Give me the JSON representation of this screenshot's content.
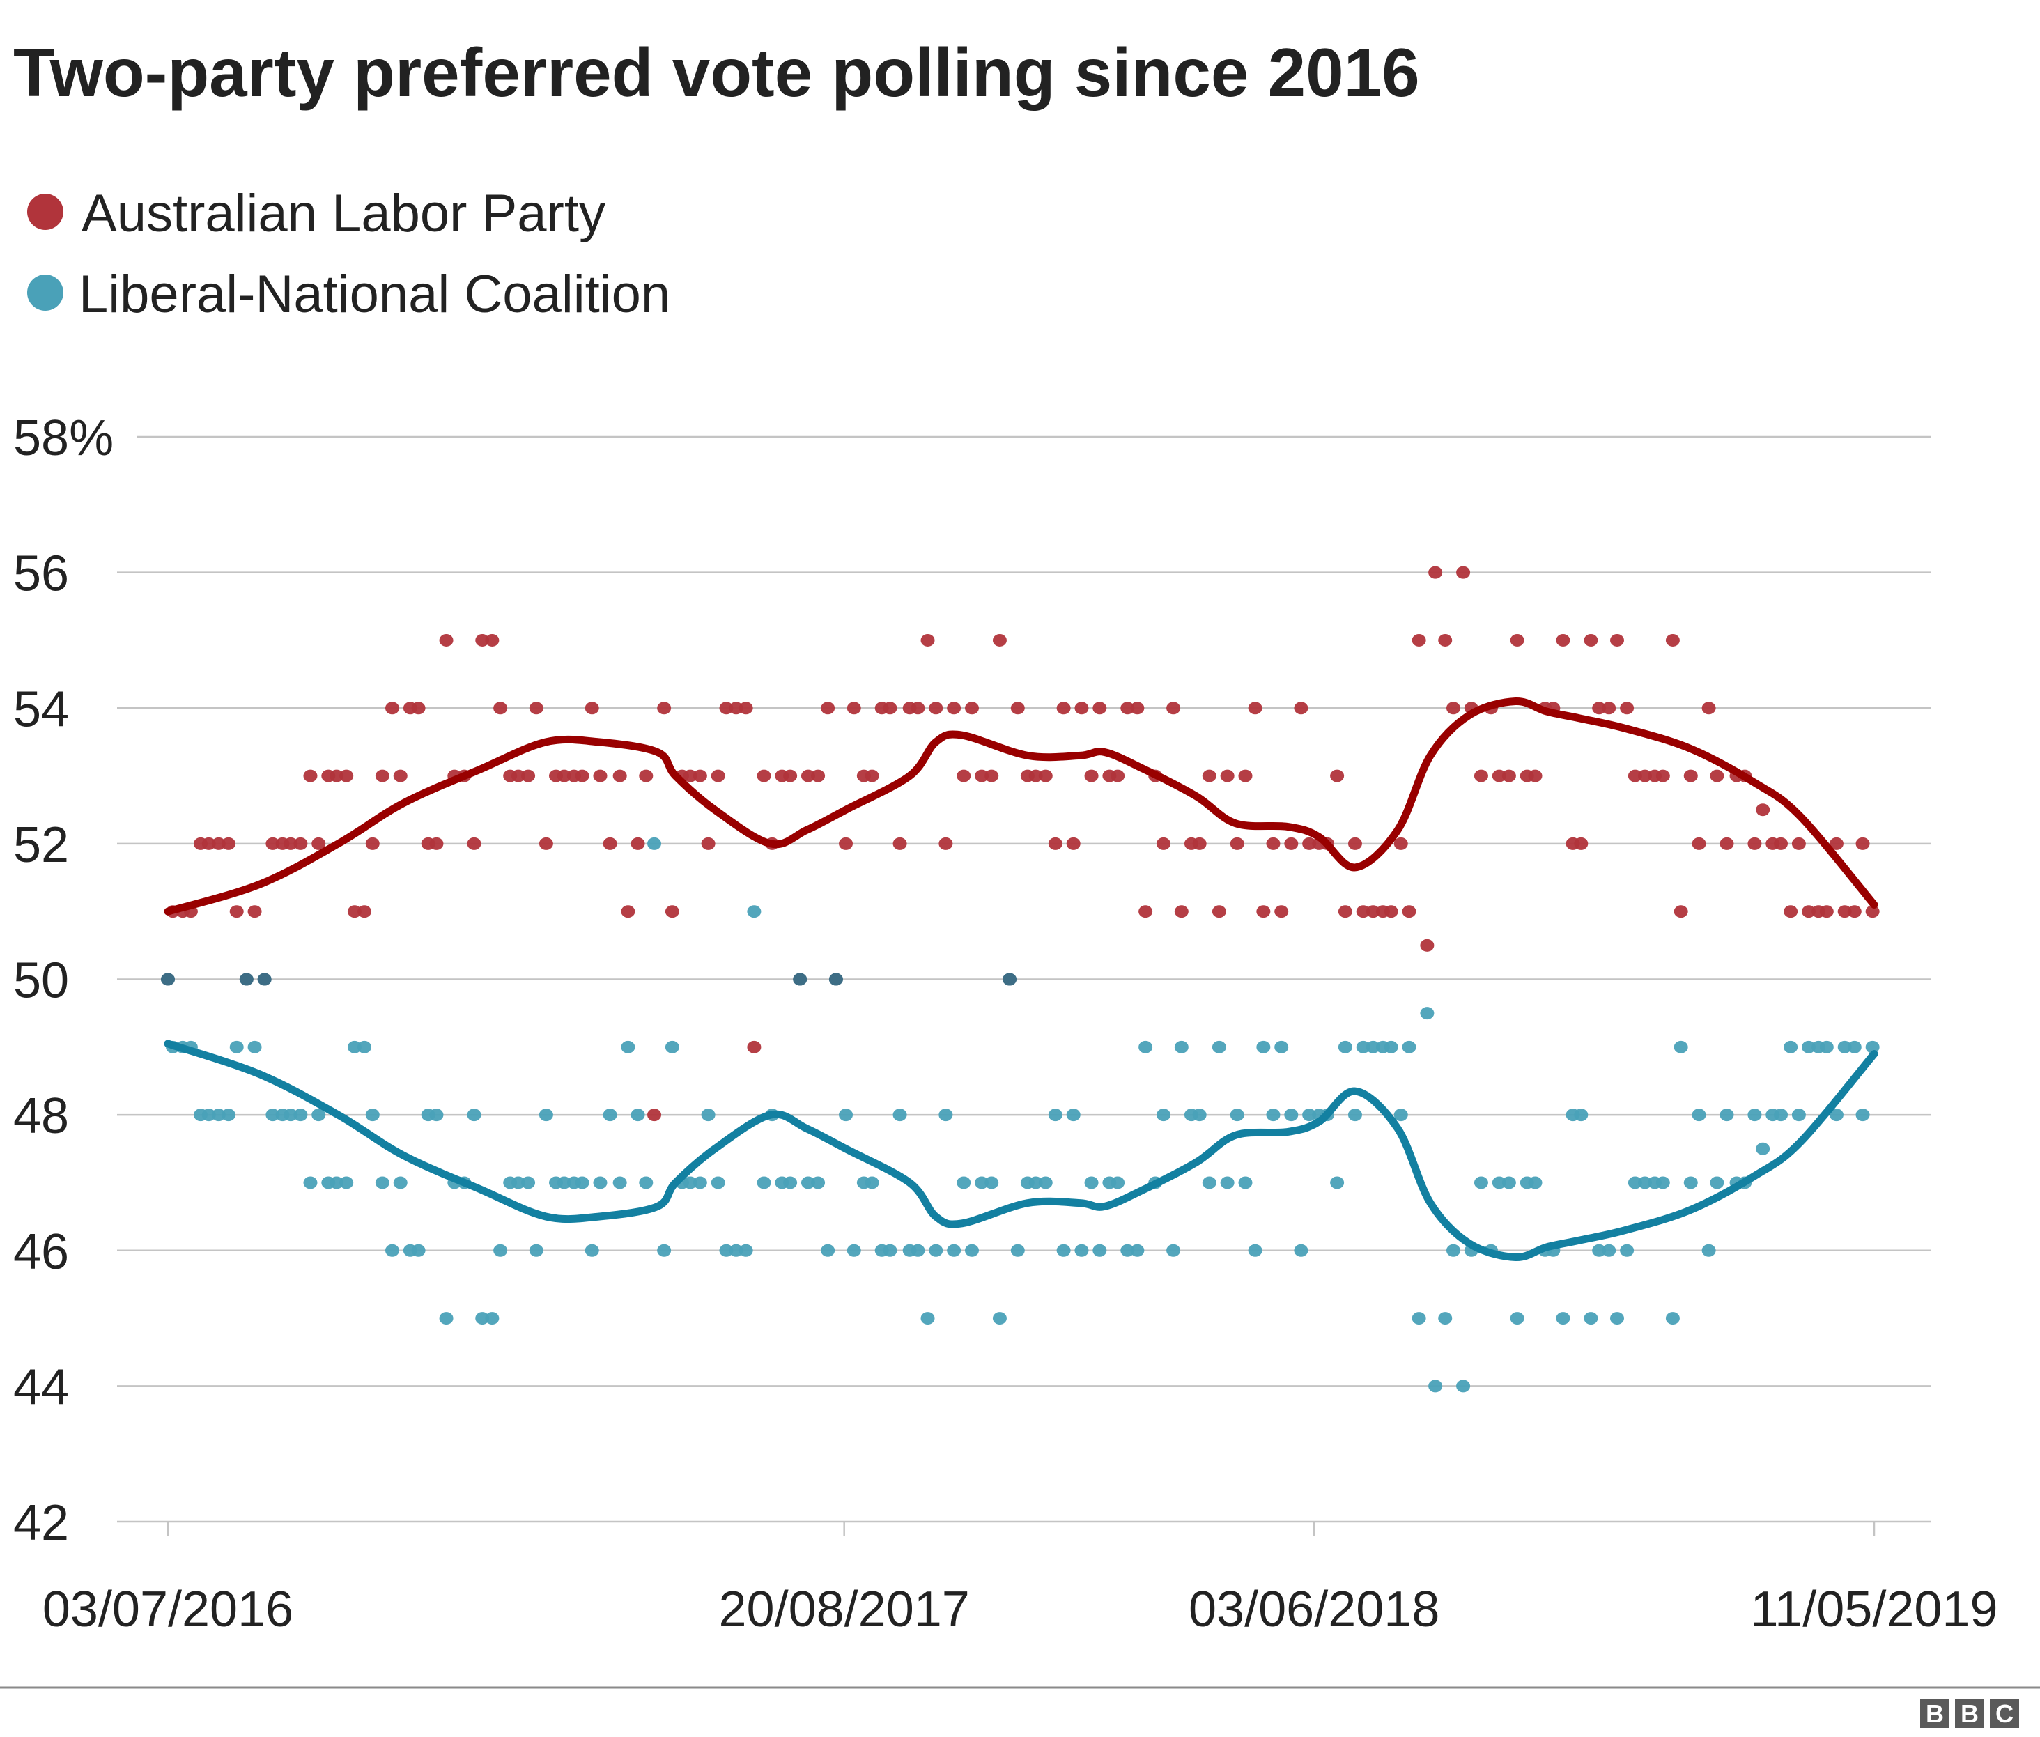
{
  "chart_data": {
    "type": "scatter",
    "title": "Two-party preferred vote polling since 2016",
    "xlabel": "",
    "ylabel": "",
    "ylim": [
      42,
      58
    ],
    "xlim": [
      "2016-07-03",
      "2019-05-11"
    ],
    "grid": true,
    "legend_position": "top-left",
    "y_ticks": [
      {
        "value": 58,
        "label": "58%"
      },
      {
        "value": 56,
        "label": "56"
      },
      {
        "value": 54,
        "label": "54"
      },
      {
        "value": 52,
        "label": "52"
      },
      {
        "value": 50,
        "label": "50"
      },
      {
        "value": 48,
        "label": "48"
      },
      {
        "value": 46,
        "label": "46"
      },
      {
        "value": 44,
        "label": "44"
      },
      {
        "value": 42,
        "label": "42"
      }
    ],
    "x_ticks": [
      {
        "value": "2016-07-03",
        "label": "03/07/2016"
      },
      {
        "value": "2017-08-20",
        "label": "20/08/2017"
      },
      {
        "value": "2018-06-03",
        "label": "03/06/2018"
      },
      {
        "value": "2019-05-11",
        "label": "11/05/2019"
      }
    ],
    "series": [
      {
        "name": "Australian Labor Party",
        "dot_color": "#b1343b",
        "line_color": "#990000"
      },
      {
        "name": "Liberal-National Coalition",
        "dot_color": "#4aa1b8",
        "line_color": "#1380a1"
      }
    ],
    "overlap_color": "#3d6d85",
    "polls": {
      "columns": [
        "date",
        "Australian Labor Party",
        "Liberal-National Coalition"
      ],
      "rows": [
        [
          "2016-07-03",
          50,
          50
        ],
        [
          "2016-07-06",
          51,
          49
        ],
        [
          "2016-07-12",
          51,
          49
        ],
        [
          "2016-07-17",
          51,
          49
        ],
        [
          "2016-07-23",
          52,
          48
        ],
        [
          "2016-07-28",
          52,
          48
        ],
        [
          "2016-08-03",
          52,
          48
        ],
        [
          "2016-08-09",
          52,
          48
        ],
        [
          "2016-08-14",
          51,
          49
        ],
        [
          "2016-08-20",
          50,
          50
        ],
        [
          "2016-08-25",
          51,
          49
        ],
        [
          "2016-08-31",
          50,
          50
        ],
        [
          "2016-09-05",
          52,
          48
        ],
        [
          "2016-09-11",
          52,
          48
        ],
        [
          "2016-09-16",
          52,
          48
        ],
        [
          "2016-09-22",
          52,
          48
        ],
        [
          "2016-09-28",
          53,
          47
        ],
        [
          "2016-10-03",
          52,
          48
        ],
        [
          "2016-10-09",
          53,
          47
        ],
        [
          "2016-10-14",
          53,
          47
        ],
        [
          "2016-10-20",
          53,
          47
        ],
        [
          "2016-10-25",
          51,
          49
        ],
        [
          "2016-10-31",
          51,
          49
        ],
        [
          "2016-11-05",
          52,
          48
        ],
        [
          "2016-11-11",
          53,
          47
        ],
        [
          "2016-11-17",
          54,
          46
        ],
        [
          "2016-11-22",
          53,
          47
        ],
        [
          "2016-11-28",
          54,
          46
        ],
        [
          "2016-12-03",
          54,
          46
        ],
        [
          "2016-12-09",
          52,
          48
        ],
        [
          "2016-12-14",
          52,
          48
        ],
        [
          "2016-12-20",
          55,
          45
        ],
        [
          "2016-12-25",
          53,
          47
        ],
        [
          "2016-12-31",
          53,
          47
        ],
        [
          "2017-01-06",
          52,
          48
        ],
        [
          "2017-01-11",
          55,
          45
        ],
        [
          "2017-01-17",
          55,
          45
        ],
        [
          "2017-01-22",
          54,
          46
        ],
        [
          "2017-01-28",
          53,
          47
        ],
        [
          "2017-02-02",
          53,
          47
        ],
        [
          "2017-02-08",
          53,
          47
        ],
        [
          "2017-02-13",
          54,
          46
        ],
        [
          "2017-02-19",
          52,
          48
        ],
        [
          "2017-02-25",
          53,
          47
        ],
        [
          "2017-03-02",
          53,
          47
        ],
        [
          "2017-03-08",
          53,
          47
        ],
        [
          "2017-03-13",
          53,
          47
        ],
        [
          "2017-03-19",
          54,
          46
        ],
        [
          "2017-03-24",
          53,
          47
        ],
        [
          "2017-03-30",
          52,
          48
        ],
        [
          "2017-04-05",
          53,
          47
        ],
        [
          "2017-04-10",
          51,
          49
        ],
        [
          "2017-04-16",
          52,
          48
        ],
        [
          "2017-04-21",
          53,
          47
        ],
        [
          "2017-04-26",
          48,
          52
        ],
        [
          "2017-05-02",
          54,
          46
        ],
        [
          "2017-05-07",
          51,
          49
        ],
        [
          "2017-05-13",
          53,
          47
        ],
        [
          "2017-05-18",
          53,
          47
        ],
        [
          "2017-05-24",
          53,
          47
        ],
        [
          "2017-05-29",
          52,
          48
        ],
        [
          "2017-06-04",
          53,
          47
        ],
        [
          "2017-06-09",
          54,
          46
        ],
        [
          "2017-06-15",
          54,
          46
        ],
        [
          "2017-06-21",
          54,
          46
        ],
        [
          "2017-06-26",
          49,
          51
        ],
        [
          "2017-07-02",
          53,
          47
        ],
        [
          "2017-07-07",
          52,
          48
        ],
        [
          "2017-07-13",
          53,
          47
        ],
        [
          "2017-07-18",
          53,
          47
        ],
        [
          "2017-07-24",
          50,
          50
        ],
        [
          "2017-07-29",
          53,
          47
        ],
        [
          "2017-08-04",
          53,
          47
        ],
        [
          "2017-08-10",
          54,
          46
        ],
        [
          "2017-08-15",
          50,
          50
        ],
        [
          "2017-08-21",
          52,
          48
        ],
        [
          "2017-08-26",
          54,
          46
        ],
        [
          "2017-09-01",
          53,
          47
        ],
        [
          "2017-09-06",
          53,
          47
        ],
        [
          "2017-09-12",
          54,
          46
        ],
        [
          "2017-09-17",
          54,
          46
        ],
        [
          "2017-09-23",
          52,
          48
        ],
        [
          "2017-09-29",
          54,
          46
        ],
        [
          "2017-10-04",
          54,
          46
        ],
        [
          "2017-10-10",
          55,
          45
        ],
        [
          "2017-10-15",
          54,
          46
        ],
        [
          "2017-10-21",
          52,
          48
        ],
        [
          "2017-10-26",
          54,
          46
        ],
        [
          "2017-11-01",
          53,
          47
        ],
        [
          "2017-11-06",
          54,
          46
        ],
        [
          "2017-11-12",
          53,
          47
        ],
        [
          "2017-11-18",
          53,
          47
        ],
        [
          "2017-11-23",
          55,
          45
        ],
        [
          "2017-11-29",
          50,
          50
        ],
        [
          "2017-12-04",
          54,
          46
        ],
        [
          "2017-12-10",
          53,
          47
        ],
        [
          "2017-12-15",
          53,
          47
        ],
        [
          "2017-12-21",
          53,
          47
        ],
        [
          "2017-12-27",
          52,
          48
        ],
        [
          "2018-01-01",
          54,
          46
        ],
        [
          "2018-01-07",
          52,
          48
        ],
        [
          "2018-01-12",
          54,
          46
        ],
        [
          "2018-01-18",
          53,
          47
        ],
        [
          "2018-01-23",
          54,
          46
        ],
        [
          "2018-01-29",
          53,
          47
        ],
        [
          "2018-02-03",
          53,
          47
        ],
        [
          "2018-02-09",
          54,
          46
        ],
        [
          "2018-02-15",
          54,
          46
        ],
        [
          "2018-02-20",
          51,
          49
        ],
        [
          "2018-02-26",
          53,
          47
        ],
        [
          "2018-03-03",
          52,
          48
        ],
        [
          "2018-03-09",
          54,
          46
        ],
        [
          "2018-03-14",
          51,
          49
        ],
        [
          "2018-03-20",
          52,
          48
        ],
        [
          "2018-03-25",
          52,
          48
        ],
        [
          "2018-03-31",
          53,
          47
        ],
        [
          "2018-04-06",
          51,
          49
        ],
        [
          "2018-04-11",
          53,
          47
        ],
        [
          "2018-04-17",
          52,
          48
        ],
        [
          "2018-04-22",
          53,
          47
        ],
        [
          "2018-04-28",
          54,
          46
        ],
        [
          "2018-05-03",
          51,
          49
        ],
        [
          "2018-05-09",
          52,
          48
        ],
        [
          "2018-05-14",
          51,
          49
        ],
        [
          "2018-05-20",
          52,
          48
        ],
        [
          "2018-05-26",
          54,
          46
        ],
        [
          "2018-05-31",
          52,
          48
        ],
        [
          "2018-06-06",
          52,
          48
        ],
        [
          "2018-06-11",
          52,
          48
        ],
        [
          "2018-06-17",
          53,
          47
        ],
        [
          "2018-06-22",
          51,
          49
        ],
        [
          "2018-06-28",
          52,
          48
        ],
        [
          "2018-07-03",
          51,
          49
        ],
        [
          "2018-07-09",
          51,
          49
        ],
        [
          "2018-07-15",
          51,
          49
        ],
        [
          "2018-07-20",
          51,
          49
        ],
        [
          "2018-07-26",
          52,
          48
        ],
        [
          "2018-07-31",
          51,
          49
        ],
        [
          "2018-08-06",
          55,
          45
        ],
        [
          "2018-08-11",
          50.5,
          49.5
        ],
        [
          "2018-08-16",
          56,
          44
        ],
        [
          "2018-08-22",
          55,
          45
        ],
        [
          "2018-08-27",
          54,
          46
        ],
        [
          "2018-09-02",
          56,
          44
        ],
        [
          "2018-09-07",
          54,
          46
        ],
        [
          "2018-09-13",
          53,
          47
        ],
        [
          "2018-09-19",
          54,
          46
        ],
        [
          "2018-09-24",
          53,
          47
        ],
        [
          "2018-09-30",
          53,
          47
        ],
        [
          "2018-10-05",
          55,
          45
        ],
        [
          "2018-10-11",
          53,
          47
        ],
        [
          "2018-10-16",
          53,
          47
        ],
        [
          "2018-10-22",
          54,
          46
        ],
        [
          "2018-10-27",
          54,
          46
        ],
        [
          "2018-11-02",
          55,
          45
        ],
        [
          "2018-11-08",
          52,
          48
        ],
        [
          "2018-11-13",
          52,
          48
        ],
        [
          "2018-11-19",
          55,
          45
        ],
        [
          "2018-11-24",
          54,
          46
        ],
        [
          "2018-11-30",
          54,
          46
        ],
        [
          "2018-12-05",
          55,
          45
        ],
        [
          "2018-12-11",
          54,
          46
        ],
        [
          "2018-12-16",
          53,
          47
        ],
        [
          "2018-12-22",
          53,
          47
        ],
        [
          "2018-12-28",
          53,
          47
        ],
        [
          "2019-01-02",
          53,
          47
        ],
        [
          "2019-01-08",
          55,
          45
        ],
        [
          "2019-01-13",
          51,
          49
        ],
        [
          "2019-01-19",
          53,
          47
        ],
        [
          "2019-01-24",
          52,
          48
        ],
        [
          "2019-01-30",
          54,
          46
        ],
        [
          "2019-02-04",
          53,
          47
        ],
        [
          "2019-02-10",
          52,
          48
        ],
        [
          "2019-02-16",
          53,
          47
        ],
        [
          "2019-02-21",
          53,
          47
        ],
        [
          "2019-02-27",
          52,
          48
        ],
        [
          "2019-03-04",
          52.5,
          47.5
        ],
        [
          "2019-03-10",
          52,
          48
        ],
        [
          "2019-03-15",
          52,
          48
        ],
        [
          "2019-03-21",
          51,
          49
        ],
        [
          "2019-03-26",
          52,
          48
        ],
        [
          "2019-04-01",
          51,
          49
        ],
        [
          "2019-04-07",
          51,
          49
        ],
        [
          "2019-04-12",
          51,
          49
        ],
        [
          "2019-04-18",
          52,
          48
        ],
        [
          "2019-04-23",
          51,
          49
        ],
        [
          "2019-04-29",
          51,
          49
        ],
        [
          "2019-05-04",
          52,
          48
        ],
        [
          "2019-05-10",
          51,
          49
        ]
      ]
    },
    "trend": {
      "columns": [
        "date",
        "Australian Labor Party",
        "Liberal-National Coalition"
      ],
      "rows": [
        [
          "2016-07-03",
          51.0,
          49.05
        ],
        [
          "2016-08-28",
          51.4,
          48.6
        ],
        [
          "2016-10-15",
          52.0,
          48.0
        ],
        [
          "2016-11-24",
          52.6,
          47.4
        ],
        [
          "2017-01-10",
          53.1,
          46.9
        ],
        [
          "2017-02-19",
          53.5,
          46.5
        ],
        [
          "2017-03-23",
          53.5,
          46.5
        ],
        [
          "2017-04-28",
          53.35,
          46.65
        ],
        [
          "2017-05-09",
          53.0,
          47.0
        ],
        [
          "2017-06-02",
          52.5,
          47.5
        ],
        [
          "2017-07-06",
          52.0,
          48.0
        ],
        [
          "2017-07-28",
          52.2,
          47.8
        ],
        [
          "2017-08-21",
          52.5,
          47.5
        ],
        [
          "2017-09-29",
          53.0,
          47.0
        ],
        [
          "2017-10-15",
          53.5,
          46.5
        ],
        [
          "2017-10-31",
          53.6,
          46.4
        ],
        [
          "2017-12-10",
          53.3,
          46.7
        ],
        [
          "2018-01-11",
          53.3,
          46.7
        ],
        [
          "2018-01-26",
          53.35,
          46.65
        ],
        [
          "2018-02-19",
          53.1,
          46.9
        ],
        [
          "2018-03-23",
          52.7,
          47.3
        ],
        [
          "2018-04-16",
          52.3,
          47.7
        ],
        [
          "2018-05-18",
          52.25,
          47.75
        ],
        [
          "2018-06-06",
          52.1,
          47.9
        ],
        [
          "2018-06-28",
          51.65,
          48.35
        ],
        [
          "2018-07-24",
          52.2,
          47.8
        ],
        [
          "2018-08-13",
          53.3,
          46.7
        ],
        [
          "2018-09-06",
          53.9,
          46.1
        ],
        [
          "2018-10-04",
          54.1,
          45.9
        ],
        [
          "2018-10-23",
          53.95,
          46.05
        ],
        [
          "2018-11-12",
          53.85,
          46.15
        ],
        [
          "2018-12-10",
          53.7,
          46.3
        ],
        [
          "2019-01-19",
          53.4,
          46.6
        ],
        [
          "2019-02-27",
          52.9,
          47.1
        ],
        [
          "2019-03-27",
          52.4,
          47.6
        ],
        [
          "2019-05-11",
          51.1,
          48.9
        ]
      ]
    }
  },
  "footer": {
    "logo": "BBC"
  }
}
